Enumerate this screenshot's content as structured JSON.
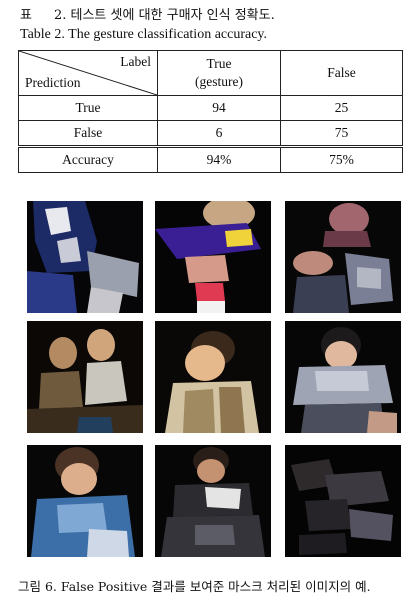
{
  "caption_ko": {
    "label": "표",
    "number": "2.",
    "text": "테스트 셋에 대한 구매자 인식 정확도."
  },
  "caption_en": "Table  2.  The gesture classification accuracy.",
  "table": {
    "corner_label": "Label",
    "corner_prediction": "Prediction",
    "col_true_line1": "True",
    "col_true_line2": "(gesture)",
    "col_false": "False",
    "rows": [
      {
        "label": "True",
        "true_val": "94",
        "false_val": "25"
      },
      {
        "label": "False",
        "true_val": "6",
        "false_val": "75"
      }
    ],
    "accuracy": {
      "label": "Accuracy",
      "true_val": "94%",
      "false_val": "75%"
    }
  },
  "figure": {
    "caption": "그림  6.  False Positive 결과를 보여준 마스크 처리된 이미지의 예.",
    "images": [
      "masked-image-1",
      "masked-image-2",
      "masked-image-3",
      "masked-image-4",
      "masked-image-5",
      "masked-image-6",
      "masked-image-7",
      "masked-image-8",
      "masked-image-9"
    ]
  }
}
